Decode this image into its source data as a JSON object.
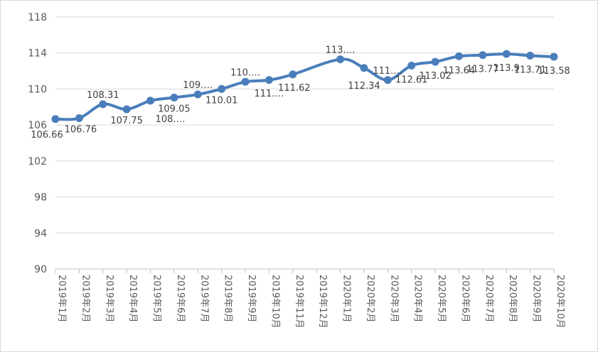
{
  "chart_data": {
    "type": "line",
    "categories": [
      "2019年1月",
      "2019年2月",
      "2019年3月",
      "2019年4月",
      "2019年5月",
      "2019年6月",
      "2019年7月",
      "2019年8月",
      "2019年9月",
      "2019年10月",
      "2019年11月",
      "2019年12月",
      "2020年1月",
      "2020年2月",
      "2020年3月",
      "2020年4月",
      "2020年5月",
      "2020年6月",
      "2020年7月",
      "2020年8月",
      "2020年9月",
      "2020年10月"
    ],
    "series": [
      {
        "values": [
          106.66,
          106.76,
          108.31,
          107.75,
          108.7,
          109.05,
          109.4,
          110.01,
          110.8,
          111.0,
          111.62,
          null,
          113.3,
          112.34,
          111.0,
          112.61,
          113.02,
          113.64,
          113.77,
          113.9,
          113.71,
          113.58
        ],
        "color": "#4a7ebb"
      }
    ],
    "data_labels": [
      "106.66",
      "106.76",
      "108.31",
      "107.75",
      "108.…",
      "109.05",
      "109.…",
      "110.01",
      "110.…",
      "111.…",
      "111.62",
      "",
      "113.…",
      "112.34",
      "111.…",
      "112.61",
      "113.02",
      "113.64",
      "113.77",
      "113.9",
      "113.71",
      "113.58"
    ],
    "yticks": [
      "90",
      "94",
      "98",
      "102",
      "106",
      "110",
      "114",
      "118"
    ],
    "ylim": [
      90,
      118
    ],
    "grid": true,
    "legend": "none",
    "smooth": true
  }
}
